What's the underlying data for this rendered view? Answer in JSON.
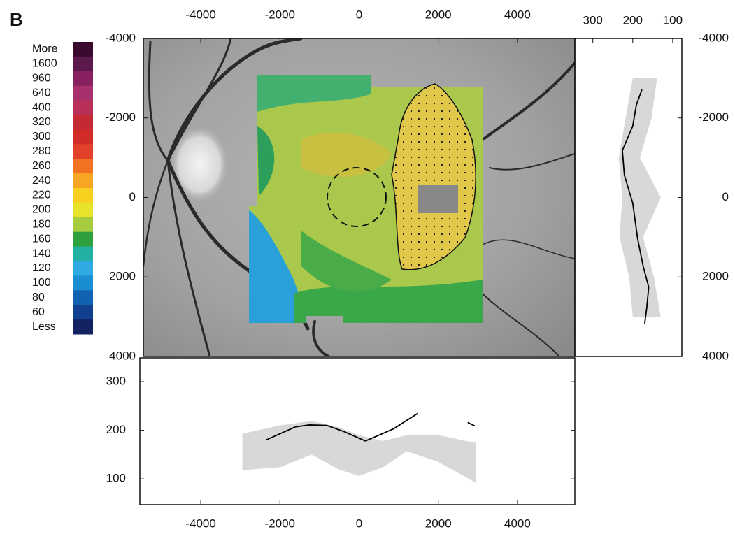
{
  "panel_label": "B",
  "chart_data": [
    {
      "type": "map",
      "xlim": [
        -5450,
        5450
      ],
      "ylim": [
        -4000,
        4000
      ],
      "xticks": [
        -4000,
        -2000,
        0,
        2000,
        4000
      ],
      "yticks": [
        -4000,
        -2000,
        0,
        2000,
        4000
      ],
      "colorbar": {
        "labels": [
          "More",
          "1600",
          "960",
          "640",
          "400",
          "320",
          "300",
          "280",
          "260",
          "240",
          "220",
          "200",
          "180",
          "160",
          "140",
          "120",
          "100",
          "80",
          "60",
          "Less"
        ],
        "colors": [
          "#3a0a2e",
          "#5c1a4c",
          "#86205e",
          "#a8306c",
          "#b83058",
          "#c42a34",
          "#d22c28",
          "#e2422a",
          "#f07222",
          "#f8a424",
          "#f8d020",
          "#e8e22a",
          "#a8cc40",
          "#2ea040",
          "#22b0a4",
          "#30aae2",
          "#1a8ed0",
          "#1262b2",
          "#10408e",
          "#142264"
        ]
      }
    },
    {
      "type": "profile-vertical",
      "xlim": [
        345,
        77
      ],
      "xticks": [
        300,
        200,
        100
      ],
      "ylim": [
        -4000,
        4000
      ],
      "yticks": [
        -4000,
        -2000,
        0,
        2000,
        4000
      ],
      "band": {
        "color": "#d8d8d8",
        "y": [
          -3000,
          -2000,
          -1000,
          0,
          1000,
          2000,
          3000
        ],
        "upper": [
          200,
          218,
          235,
          226,
          233,
          209,
          200
        ],
        "lower": [
          139,
          153,
          182,
          130,
          174,
          147,
          130
        ]
      },
      "series": [
        {
          "color": "#000000",
          "y": [
            -2714,
            -2326,
            -1797,
            -1180,
            -564,
            141,
            1022,
            1727,
            2256,
            2784,
            3172
          ],
          "values": [
            177,
            191,
            200,
            226,
            221,
            200,
            188,
            174,
            160,
            165,
            170
          ]
        }
      ]
    },
    {
      "type": "profile",
      "xlim": [
        -5450,
        5450
      ],
      "xticks": [
        -4000,
        -2000,
        0,
        2000,
        4000
      ],
      "ylim": [
        47,
        349
      ],
      "yticks": [
        100,
        200,
        300
      ],
      "band": {
        "color": "#d8d8d8",
        "x": [
          -2950,
          -2000,
          -1200,
          -500,
          0,
          600,
          1200,
          2000,
          2950
        ],
        "upper": [
          193,
          210,
          219,
          206,
          190,
          178,
          190,
          190,
          174
        ],
        "lower": [
          118,
          124,
          150,
          119,
          106,
          124,
          157,
          135,
          92
        ]
      },
      "series": [
        {
          "color": "#000000",
          "x": [
            -2354,
            -1611,
            -1257,
            -814,
            -372,
            159,
            867,
            1487,
            null,
            2743,
            2920
          ],
          "values": [
            180,
            207,
            211,
            210,
            197,
            178,
            203,
            235,
            null,
            216,
            209
          ]
        }
      ]
    }
  ]
}
